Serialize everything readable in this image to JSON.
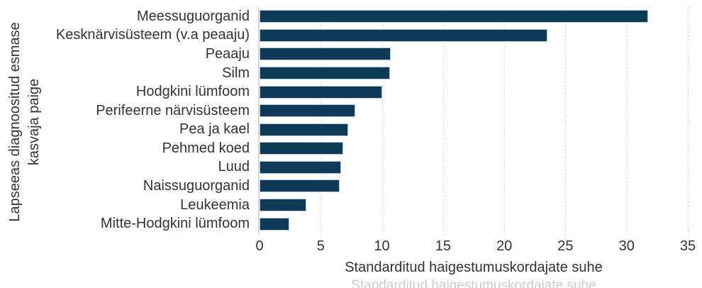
{
  "chart_data": {
    "type": "bar",
    "orientation": "horizontal",
    "title": "",
    "categories": [
      "Meessuguorganid",
      "Kesknärvisüsteem (v.a peaaju)",
      "Peaaju",
      "Silm",
      "Hodgkini lümfoom",
      "Perifeerne närvisüsteem",
      "Pea ja kael",
      "Pehmed koed",
      "Luud",
      "Naissuguorganid",
      "Leukeemia",
      "Mitte-Hodgkini lümfoom"
    ],
    "values": [
      31.8,
      23.6,
      10.8,
      10.7,
      10.1,
      7.9,
      7.3,
      6.9,
      6.7,
      6.6,
      3.9,
      2.5
    ],
    "xlabel": "Standarditud haigestumuskordajate suhe",
    "ylabel": "Lapseeas diagnoositud esmase kasvaja paige",
    "ylabel_lines": [
      "Lapseeas diagnoositud esmase",
      "kasvaja paige"
    ],
    "xlim": [
      0,
      35
    ],
    "xticks": [
      0,
      5,
      10,
      15,
      20,
      25,
      30,
      35
    ],
    "grid": "vertical-dotted",
    "legend": "none",
    "colors": {
      "bar_fill": "#0e3a58",
      "bar_border": "#b5cdde",
      "axis_line": "#d8d8d8",
      "grid_dots": "#c9c9c9",
      "text": "#333333",
      "ghost_text": "#cccccc"
    }
  },
  "footer": {
    "ghost_text": "Standarditud haigestumuskordajate suhe"
  }
}
